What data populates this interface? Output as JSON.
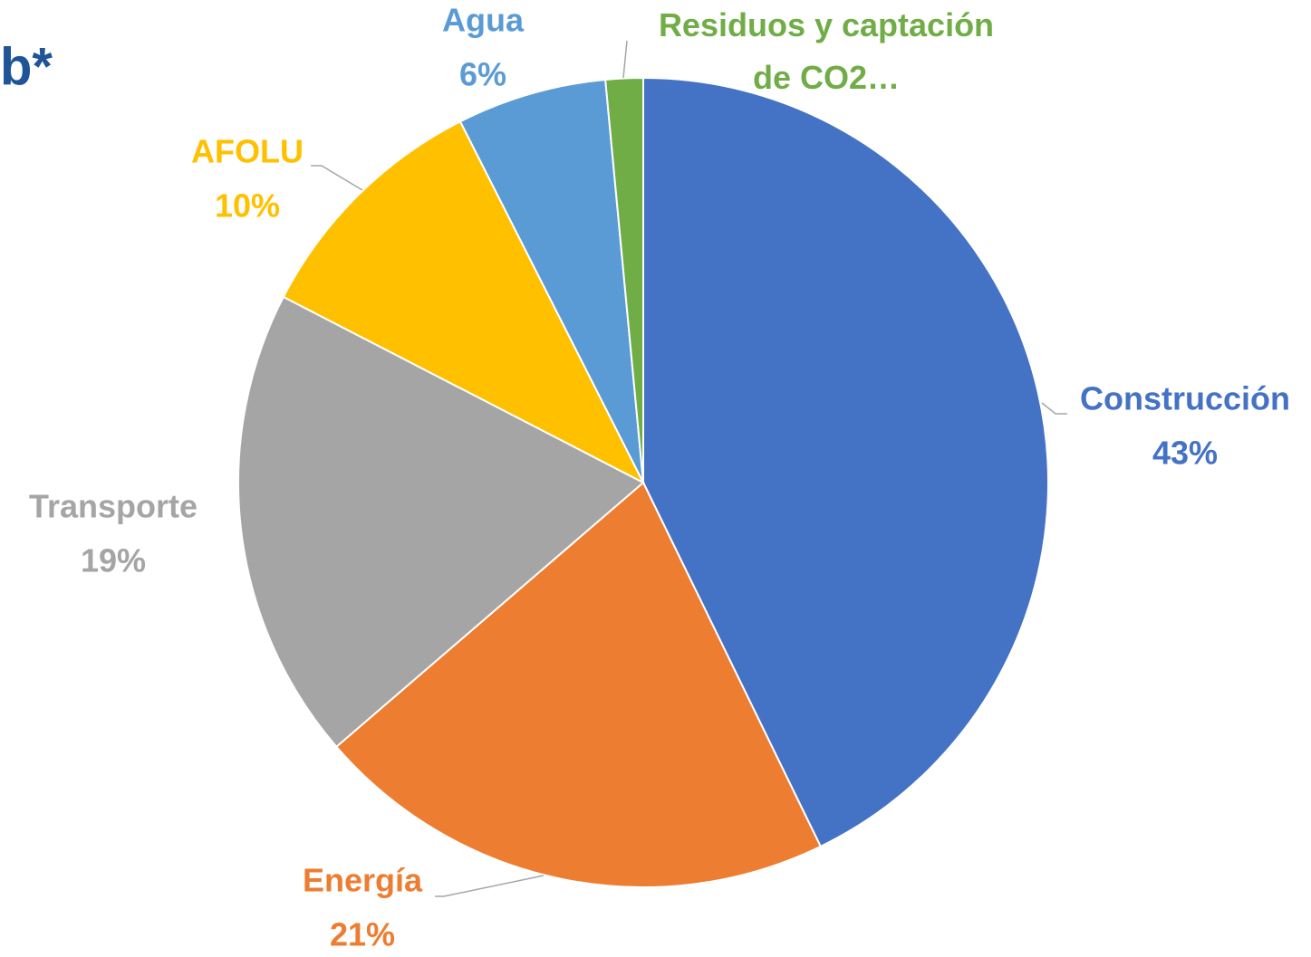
{
  "chart_data": {
    "type": "pie",
    "title": "b*",
    "categories": [
      "Construcción",
      "Energía",
      "Transporte",
      "AFOLU",
      "Agua",
      "Residuos y captación de CO2…"
    ],
    "values": [
      43,
      21,
      19,
      10,
      6,
      1.5
    ],
    "value_labels": [
      "43%",
      "21%",
      "19%",
      "10%",
      "6%",
      null
    ],
    "colors": [
      "#4472c4",
      "#ed7d31",
      "#a5a5a5",
      "#ffc000",
      "#5b9bd5",
      "#70ad47"
    ]
  }
}
